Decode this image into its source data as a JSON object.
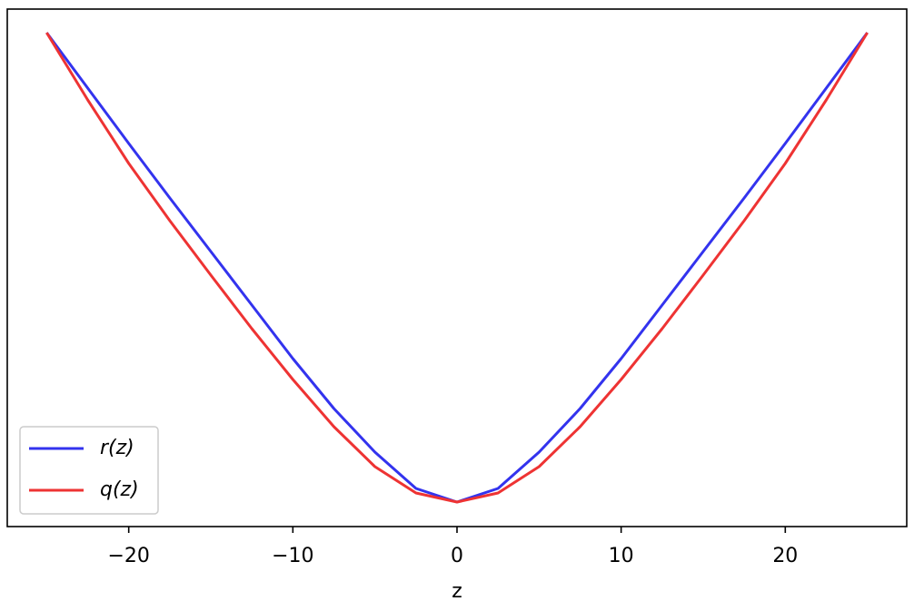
{
  "chart_data": {
    "type": "line",
    "x_label": "z",
    "x": [
      -25,
      -22.5,
      -20,
      -17.5,
      -15,
      -12.5,
      -10,
      -7.5,
      -5,
      -2.5,
      0,
      2.5,
      5,
      7.5,
      10,
      12.5,
      15,
      17.5,
      20,
      22.5,
      25
    ],
    "series": [
      {
        "name": "r(z)",
        "color": "#3333ee",
        "values": [
          27.2,
          24.15,
          21.1,
          18.1,
          15.15,
          12.2,
          9.25,
          6.5,
          4.1,
          2.1,
          1.35,
          2.1,
          4.1,
          6.5,
          9.25,
          12.2,
          15.15,
          18.1,
          21.1,
          24.15,
          27.2
        ]
      },
      {
        "name": "q(z)",
        "color": "#ee3333",
        "values": [
          27.2,
          23.5,
          20.0,
          16.85,
          13.85,
          10.9,
          8.1,
          5.5,
          3.3,
          1.85,
          1.35,
          1.85,
          3.3,
          5.5,
          8.1,
          10.9,
          13.85,
          16.85,
          20.0,
          23.5,
          27.2
        ]
      }
    ],
    "xlim": [
      -27.4,
      27.4
    ],
    "ylim": [
      0,
      28.5
    ],
    "xticks": [
      {
        "value": -20,
        "label": "−20"
      },
      {
        "value": -10,
        "label": "−10"
      },
      0,
      10,
      20
    ],
    "grid": false,
    "legend": "lower left"
  }
}
